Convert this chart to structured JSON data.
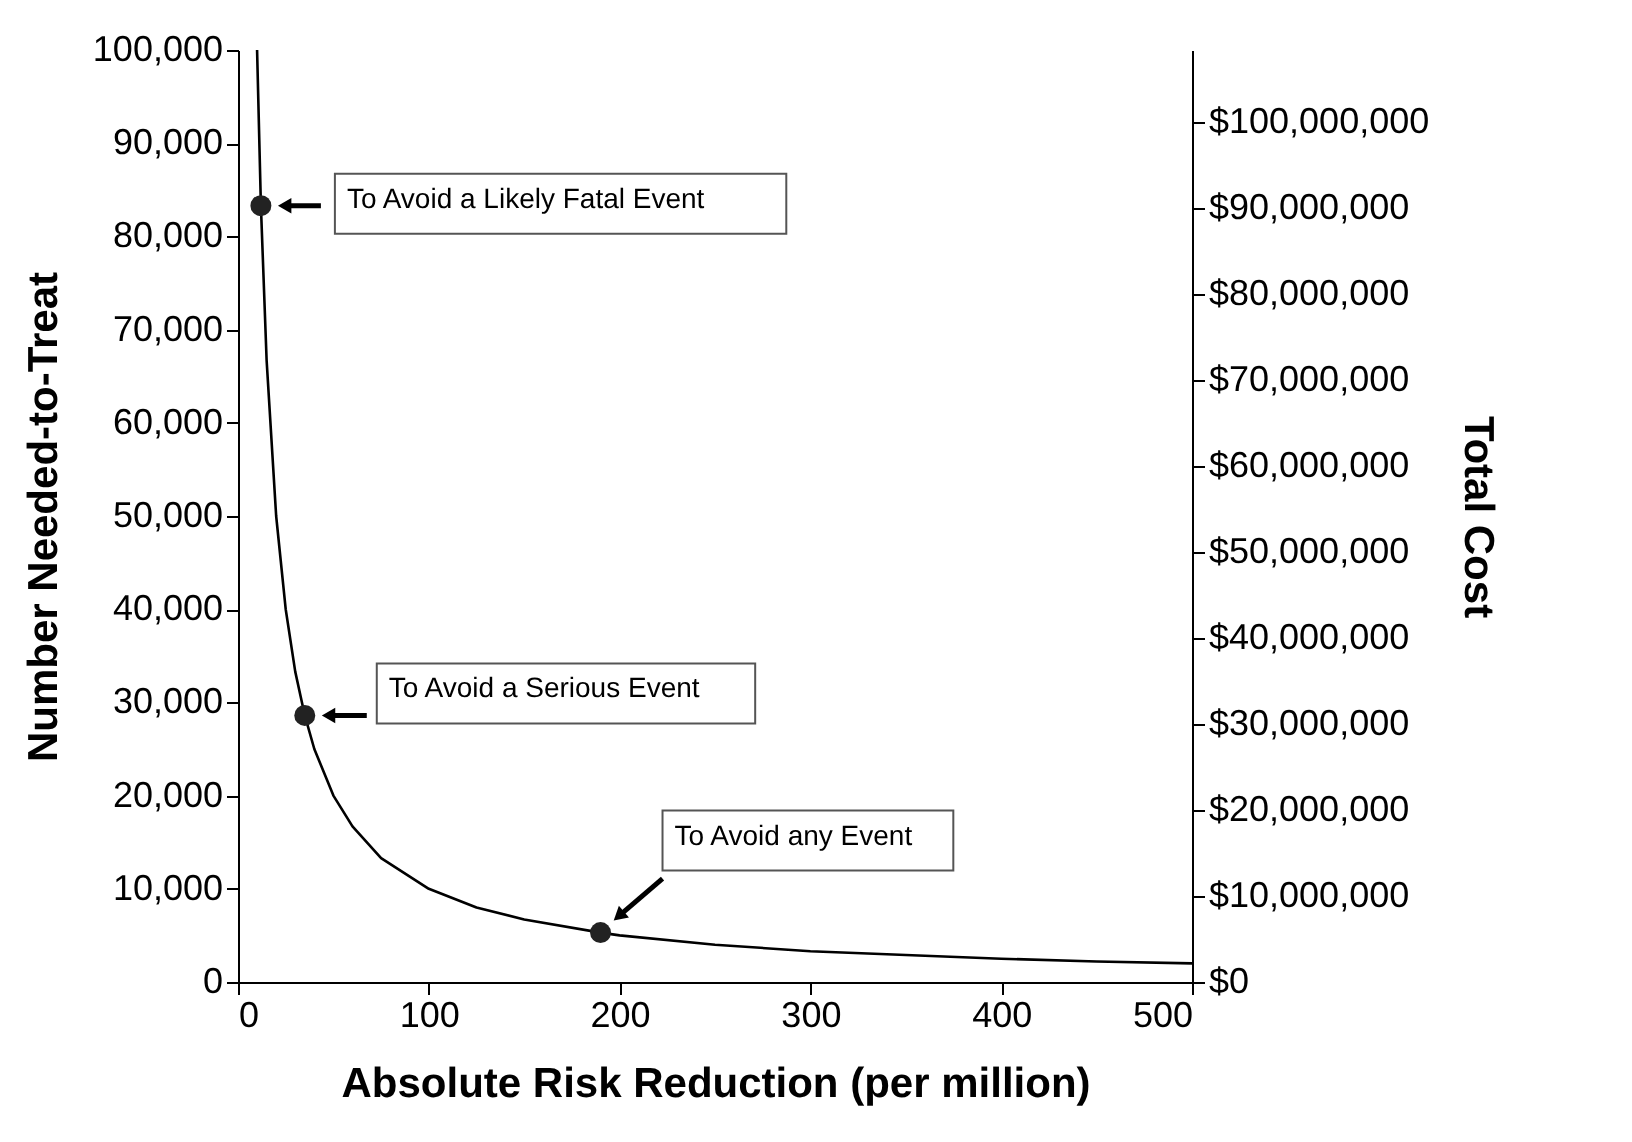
{
  "chart_data": {
    "type": "line",
    "xlabel": "Absolute Risk Reduction (per million)",
    "ylabel": "Number Needed-to-Treat",
    "y2label": "Total Cost",
    "series": [
      {
        "type": "line",
        "color": "#000000",
        "x": [
          10,
          12,
          15,
          20,
          25,
          30,
          35,
          40,
          50,
          60,
          75,
          100,
          125,
          150,
          190,
          200,
          250,
          300,
          350,
          400,
          450,
          500
        ],
        "values": [
          100000,
          83300,
          66700,
          50000,
          40000,
          33300,
          28600,
          25000,
          20000,
          16700,
          13300,
          10000,
          8000,
          6700,
          5300,
          5000,
          4000,
          3300,
          2900,
          2500,
          2200,
          2000
        ]
      },
      {
        "type": "scatter",
        "color": "#222222",
        "marker": "circle",
        "x": [
          12,
          35,
          190
        ],
        "values": [
          83300,
          28600,
          5300
        ]
      }
    ],
    "annotations": [
      "To Avoid a Likely Fatal Event",
      "To Avoid a Serious Event",
      "To Avoid any Event"
    ],
    "xlim": [
      0,
      500
    ],
    "xticks": [
      0,
      100,
      200,
      300,
      400,
      500
    ],
    "ylim": [
      0,
      100000
    ],
    "yticks": [
      {
        "value": 0,
        "label": "0"
      },
      {
        "value": 10000,
        "label": "10,000"
      },
      {
        "value": 20000,
        "label": "20,000"
      },
      {
        "value": 30000,
        "label": "30,000"
      },
      {
        "value": 40000,
        "label": "40,000"
      },
      {
        "value": 50000,
        "label": "50,000"
      },
      {
        "value": 60000,
        "label": "60,000"
      },
      {
        "value": 70000,
        "label": "70,000"
      },
      {
        "value": 80000,
        "label": "80,000"
      },
      {
        "value": 90000,
        "label": "90,000"
      },
      {
        "value": 100000,
        "label": "100,000"
      }
    ],
    "y2lim": [
      0,
      108400000
    ],
    "y2ticks": [
      {
        "value": 0,
        "label": "$0"
      },
      {
        "value": 10000000,
        "label": "$10,000,000"
      },
      {
        "value": 20000000,
        "label": "$20,000,000"
      },
      {
        "value": 30000000,
        "label": "$30,000,000"
      },
      {
        "value": 40000000,
        "label": "$40,000,000"
      },
      {
        "value": 50000000,
        "label": "$50,000,000"
      },
      {
        "value": 60000000,
        "label": "$60,000,000"
      },
      {
        "value": 70000000,
        "label": "$70,000,000"
      },
      {
        "value": 80000000,
        "label": "$80,000,000"
      },
      {
        "value": 90000000,
        "label": "$90,000,000"
      },
      {
        "value": 100000000,
        "label": "$100,000,000"
      }
    ],
    "grid": false,
    "legend": false
  }
}
